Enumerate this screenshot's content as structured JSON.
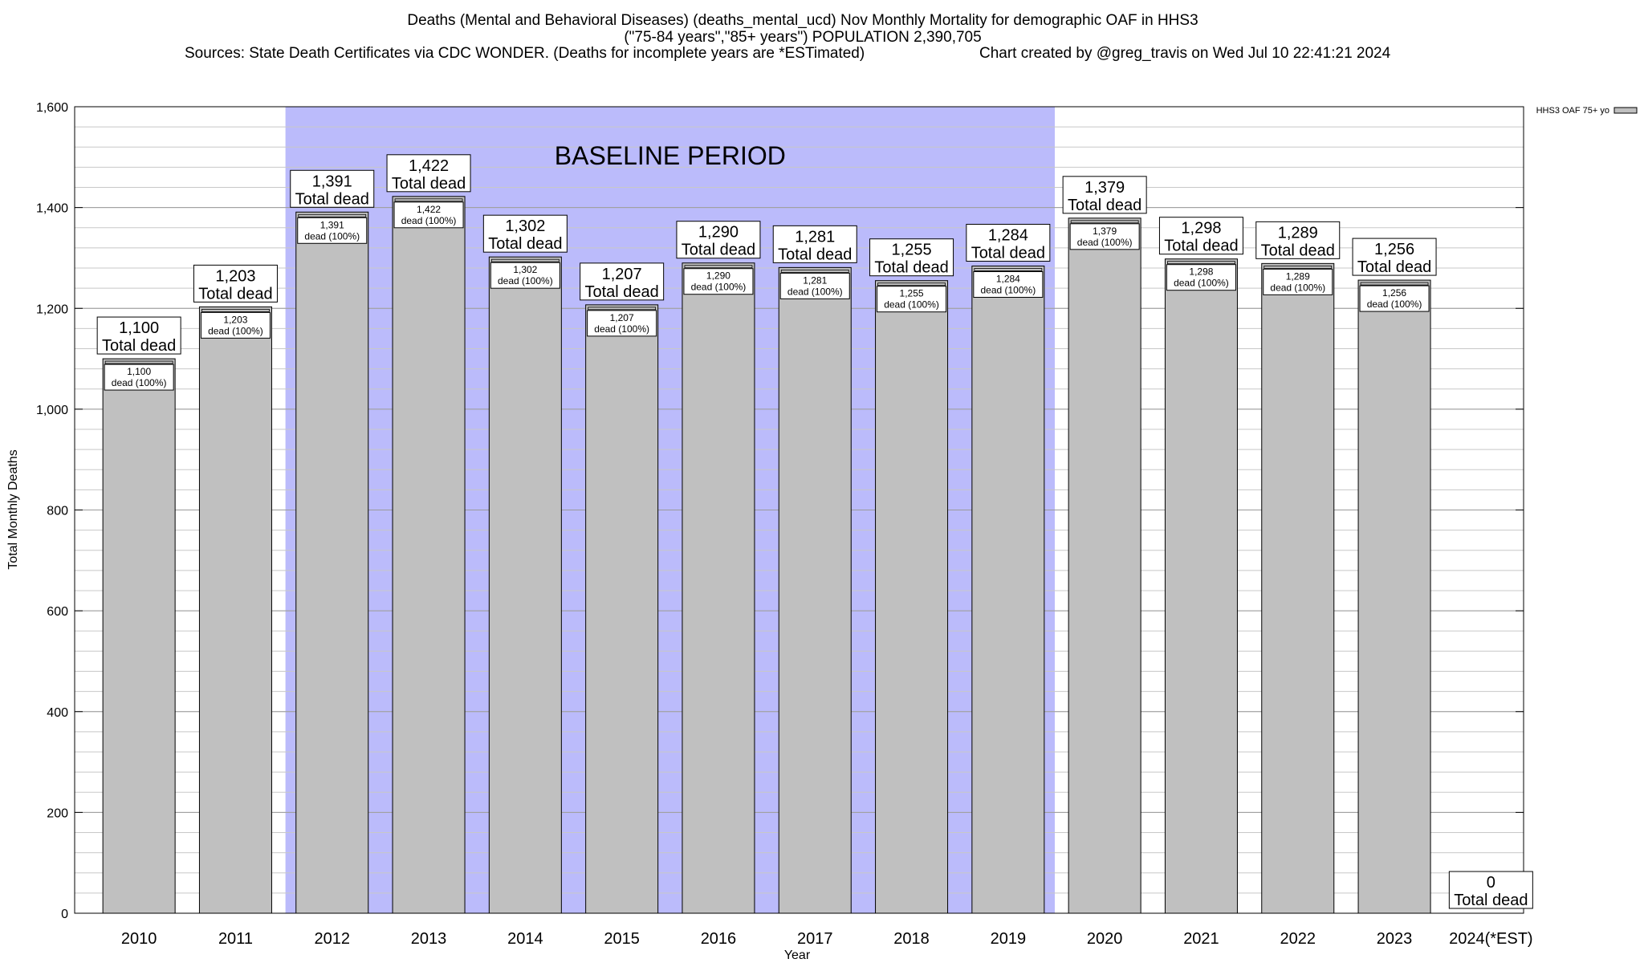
{
  "header": {
    "title_line1": "Deaths (Mental and Behavioral Diseases) (deaths_mental_ucd) Nov Monthly Mortality for demographic OAF in HHS3",
    "title_line2": "(\"75-84 years\",\"85+ years\") POPULATION 2,390,705",
    "sources": "Sources: State Death Certificates via CDC WONDER. (Deaths for incomplete years are *ESTimated)",
    "credit": "Chart created by @greg_travis on Wed Jul 10 22:41:21 2024"
  },
  "chart_data": {
    "type": "bar",
    "xlabel": "Year",
    "ylabel": "Total Monthly Deaths",
    "ylim": [
      0,
      1600
    ],
    "yticks": [
      0,
      200,
      400,
      600,
      800,
      1000,
      1200,
      1400,
      1600
    ],
    "ytick_labels": [
      "0",
      "200",
      "400",
      "600",
      "800",
      "1,000",
      "1,200",
      "1,400",
      "1,600"
    ],
    "minor_grid_step": 40,
    "categories": [
      "2010",
      "2011",
      "2012",
      "2013",
      "2014",
      "2015",
      "2016",
      "2017",
      "2018",
      "2019",
      "2020",
      "2021",
      "2022",
      "2023",
      "2024(*EST)"
    ],
    "series": [
      {
        "name": "HHS3 OAF 75+ yo",
        "color": "#c0c0c0",
        "values": [
          1100,
          1203,
          1391,
          1422,
          1302,
          1207,
          1290,
          1281,
          1255,
          1284,
          1379,
          1298,
          1289,
          1256,
          0
        ]
      }
    ],
    "total_labels": [
      "1,100",
      "1,203",
      "1,391",
      "1,422",
      "1,302",
      "1,207",
      "1,290",
      "1,281",
      "1,255",
      "1,284",
      "1,379",
      "1,298",
      "1,289",
      "1,256",
      "0"
    ],
    "total_caption": "Total dead",
    "inner_caption": "dead (100%)",
    "baseline": {
      "label": "BASELINE PERIOD",
      "from": "2012",
      "to": "2019",
      "color": "#bbbbfb"
    },
    "legend": {
      "label": "HHS3 OAF 75+ yo",
      "position": "top-right"
    }
  }
}
